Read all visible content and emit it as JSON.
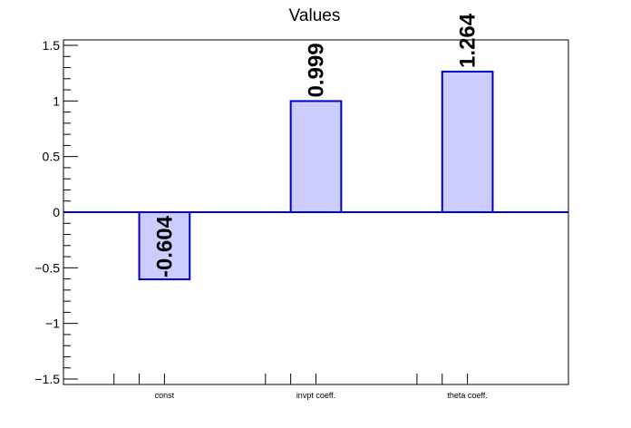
{
  "chart_data": {
    "type": "bar",
    "title": "Values",
    "categories": [
      "const",
      "invpt coeff.",
      "theta coeff."
    ],
    "values": [
      -0.604,
      0.999,
      1.264
    ],
    "value_labels": [
      "-0.604",
      "0.999",
      "1.264"
    ],
    "ylim": [
      -1.5,
      1.5
    ],
    "y_ticks": [
      -1.5,
      -1,
      -0.5,
      0,
      0.5,
      1,
      1.5
    ],
    "y_tick_labels": [
      "−1.5",
      "−1",
      "−0.5",
      "0",
      "0.5",
      "1",
      "1.5"
    ],
    "xlabel": "",
    "ylabel": "",
    "grid": false,
    "colors": {
      "bar_fill": "#ccccff",
      "bar_stroke": "#0000cc",
      "zero_line": "#0000cc",
      "axis": "#000000"
    }
  }
}
